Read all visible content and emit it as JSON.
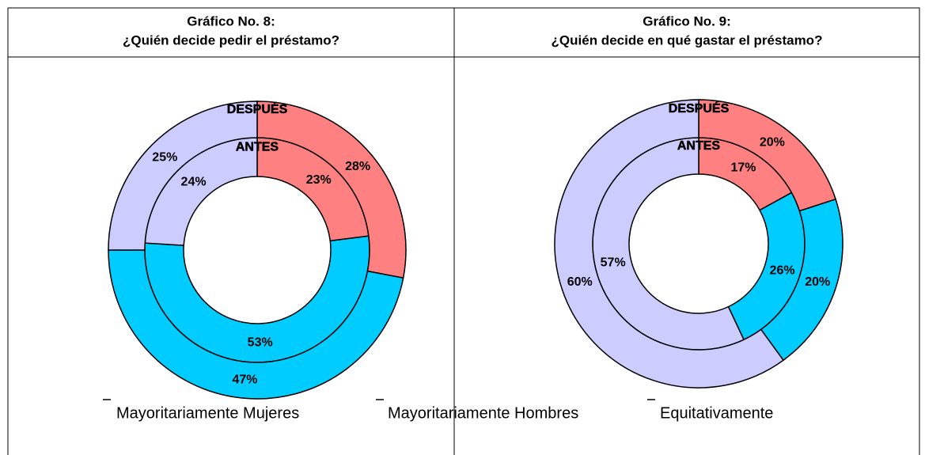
{
  "legend": {
    "categories": [
      "Mayoritariamente Mujeres",
      "Mayoritariamente Hombres",
      "Equitativamente"
    ],
    "colors": [
      "#ff8080",
      "#00ccff",
      "#ccccff"
    ]
  },
  "chart_data": [
    {
      "type": "donut",
      "title": "Gráfico No. 8:",
      "subtitle": "¿Quién decide pedir el préstamo?",
      "series": [
        {
          "name": "ANTES",
          "values": [
            23,
            53,
            24
          ],
          "value_labels": [
            "23%",
            "53%",
            "24%"
          ]
        },
        {
          "name": "DESPUÉS",
          "values": [
            28,
            47,
            25
          ],
          "value_labels": [
            "28%",
            "47%",
            "25%"
          ]
        }
      ]
    },
    {
      "type": "donut",
      "title": "Gráfico No. 9:",
      "subtitle": "¿Quién decide en qué gastar el préstamo?",
      "series": [
        {
          "name": "ANTES",
          "values": [
            17,
            26,
            57
          ],
          "value_labels": [
            "17%",
            "26%",
            "57%"
          ]
        },
        {
          "name": "DESPUÉS",
          "values": [
            20,
            20,
            60
          ],
          "value_labels": [
            "20%",
            "20%",
            "60%"
          ]
        }
      ]
    }
  ]
}
